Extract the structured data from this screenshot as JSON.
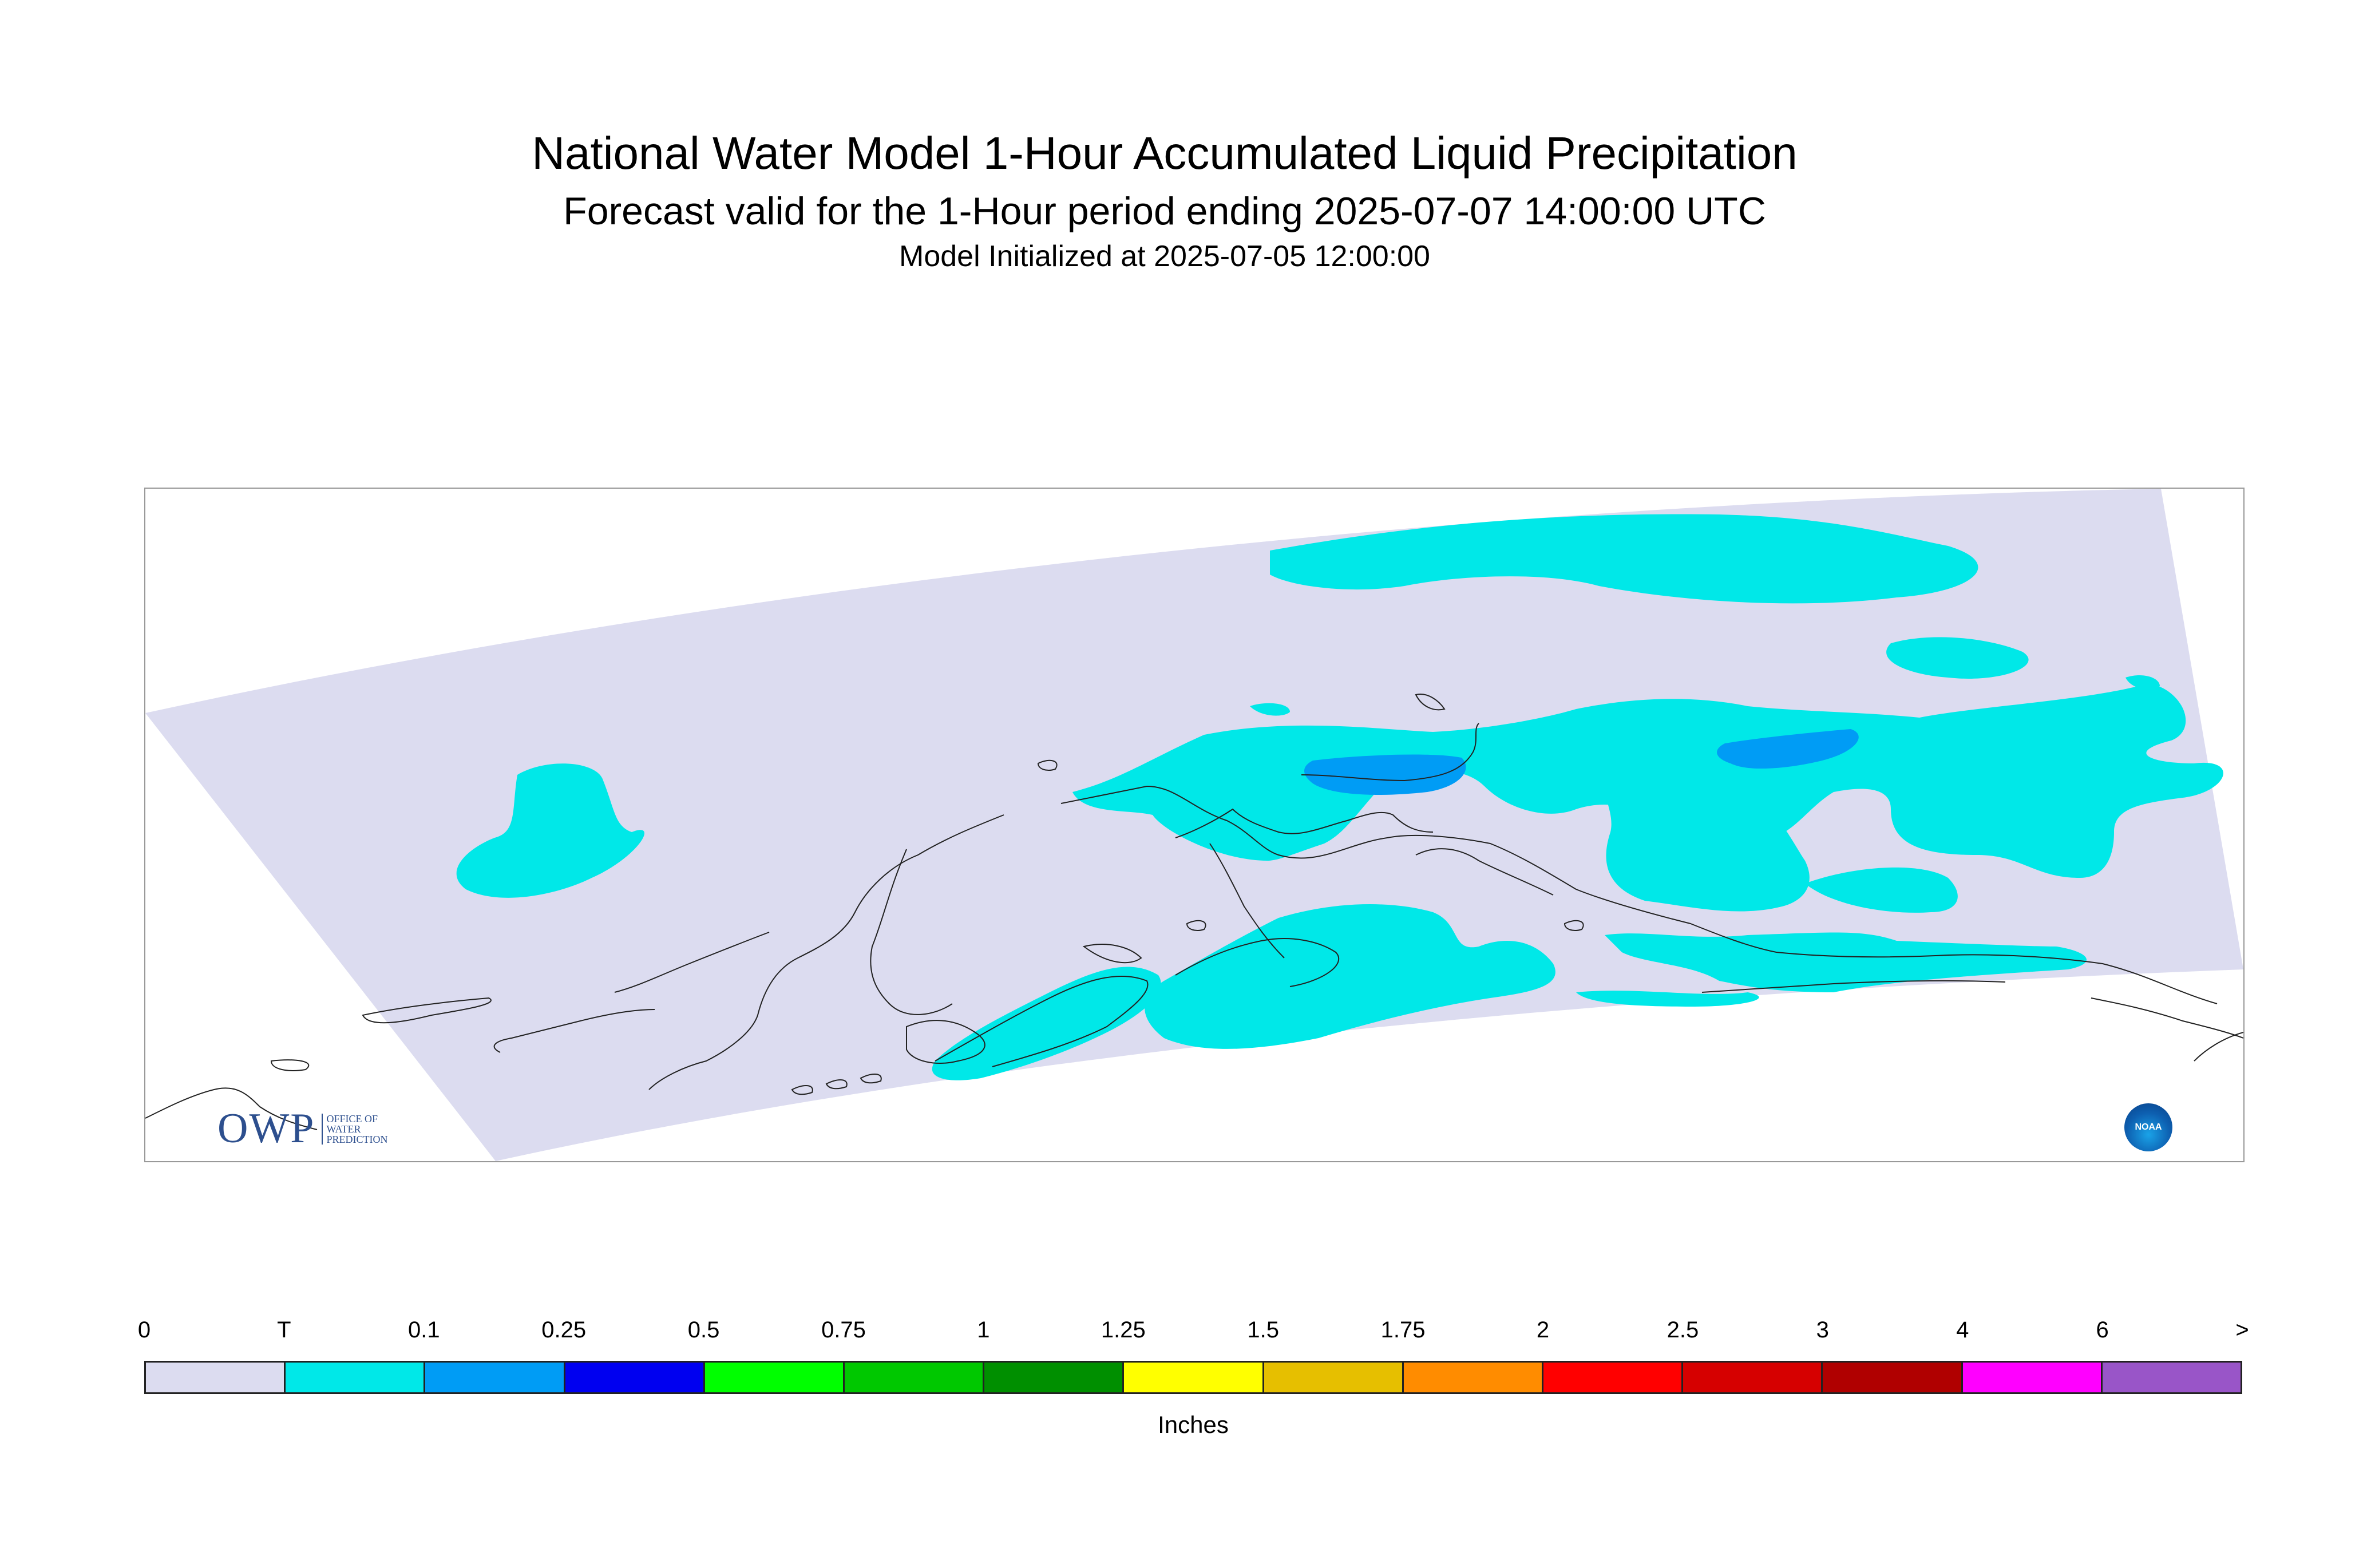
{
  "titles": {
    "main": "National Water Model 1-Hour Accumulated Liquid Precipitation",
    "subtitle": "Forecast valid for the 1-Hour period ending 2025-07-07 14:00:00 UTC",
    "init": "Model Initialized at 2025-07-05 12:00:00"
  },
  "legend": {
    "units": "Inches",
    "ticks": [
      "0",
      "T",
      "0.1",
      "0.25",
      "0.5",
      "0.75",
      "1",
      "1.25",
      "1.5",
      "1.75",
      "2",
      "2.5",
      "3",
      "4",
      "6",
      ">"
    ],
    "colors": [
      "#dcdcf0",
      "#00e8e8",
      "#009cf5",
      "#0000f0",
      "#00ff00",
      "#00c800",
      "#008f00",
      "#ffff00",
      "#e6bf00",
      "#ff8c00",
      "#ff0000",
      "#d60000",
      "#b00000",
      "#ff00ff",
      "#9955c8"
    ]
  },
  "logos": {
    "owp_big": "OWP",
    "owp_small": [
      "OFFICE OF",
      "WATER",
      "PREDICTION"
    ],
    "noaa": "NOAA"
  },
  "map": {
    "region": "Alaska",
    "domain_color": "#dcdcf0",
    "trace_color": "#00e8e8",
    "light_color": "#009cf5"
  }
}
